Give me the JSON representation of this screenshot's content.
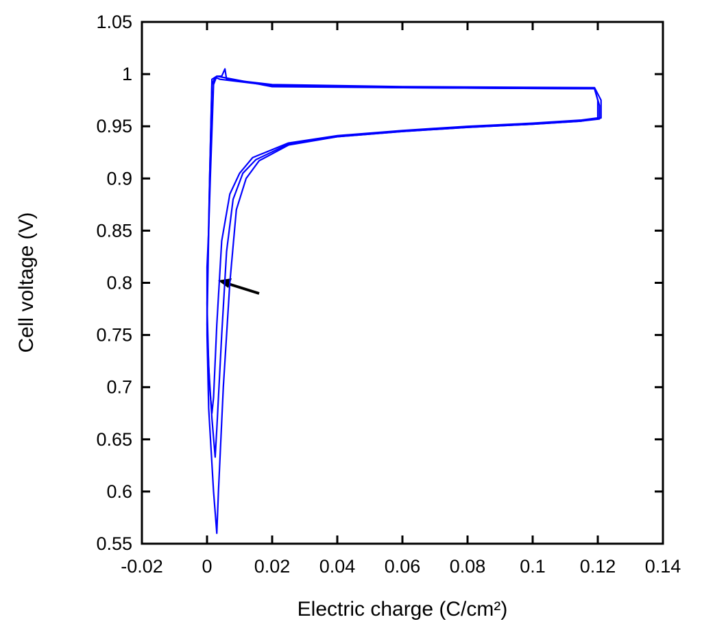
{
  "chart_data": {
    "type": "line",
    "x_label": "Electric charge (C/cm²)",
    "y_label": "Cell voltage (V)",
    "xlim": [
      -0.02,
      0.14
    ],
    "xticks": [
      -0.02,
      0,
      0.02,
      0.04,
      0.06,
      0.08,
      0.1,
      0.12,
      0.14
    ],
    "ylim": [
      0.55,
      1.05
    ],
    "yticks": [
      0.55,
      0.6,
      0.65,
      0.7,
      0.75,
      0.8,
      0.85,
      0.9,
      0.95,
      1,
      1.05
    ],
    "grid": false,
    "series": [
      {
        "color": "#0000ff",
        "x": [
          0.0,
          0.0,
          0.0005,
          0.002,
          0.003,
          0.0035,
          0.005,
          0.007,
          0.009,
          0.012,
          0.016,
          0.025,
          0.04,
          0.06,
          0.08,
          0.1,
          0.115,
          0.121,
          0.121,
          0.119,
          0.06,
          0.02,
          0.006,
          0.0055,
          0.0045,
          0.003,
          0.002,
          0.001,
          0.0005,
          0.0
        ],
        "values": [
          0.815,
          0.75,
          0.68,
          0.6,
          0.56,
          0.6,
          0.7,
          0.8,
          0.87,
          0.9,
          0.917,
          0.932,
          0.94,
          0.945,
          0.949,
          0.952,
          0.955,
          0.958,
          0.975,
          0.987,
          0.988,
          0.99,
          0.995,
          1.005,
          0.998,
          0.998,
          0.99,
          0.9,
          0.85,
          0.815
        ]
      },
      {
        "color": "#0000ff",
        "x": [
          0.0,
          0.0005,
          0.0015,
          0.0025,
          0.003,
          0.0045,
          0.006,
          0.008,
          0.011,
          0.015,
          0.025,
          0.04,
          0.06,
          0.08,
          0.1,
          0.115,
          0.1205,
          0.1205,
          0.119,
          0.06,
          0.02,
          0.004,
          0.0025,
          0.0015,
          0.0008,
          0.0
        ],
        "values": [
          0.78,
          0.72,
          0.67,
          0.633,
          0.66,
          0.75,
          0.83,
          0.88,
          0.905,
          0.918,
          0.933,
          0.94,
          0.945,
          0.949,
          0.952,
          0.955,
          0.957,
          0.97,
          0.986,
          0.987,
          0.989,
          0.995,
          0.997,
          0.99,
          0.9,
          0.78
        ]
      },
      {
        "color": "#0000ff",
        "x": [
          0.0,
          0.0008,
          0.0015,
          0.002,
          0.003,
          0.0045,
          0.007,
          0.01,
          0.014,
          0.025,
          0.04,
          0.06,
          0.08,
          0.1,
          0.115,
          0.12,
          0.12,
          0.119,
          0.06,
          0.02,
          0.003,
          0.0015,
          0.0008,
          0.0
        ],
        "values": [
          0.76,
          0.7,
          0.675,
          0.69,
          0.76,
          0.84,
          0.885,
          0.905,
          0.92,
          0.934,
          0.941,
          0.946,
          0.95,
          0.953,
          0.956,
          0.958,
          0.975,
          0.986,
          0.987,
          0.988,
          0.998,
          0.995,
          0.9,
          0.76
        ]
      }
    ]
  }
}
